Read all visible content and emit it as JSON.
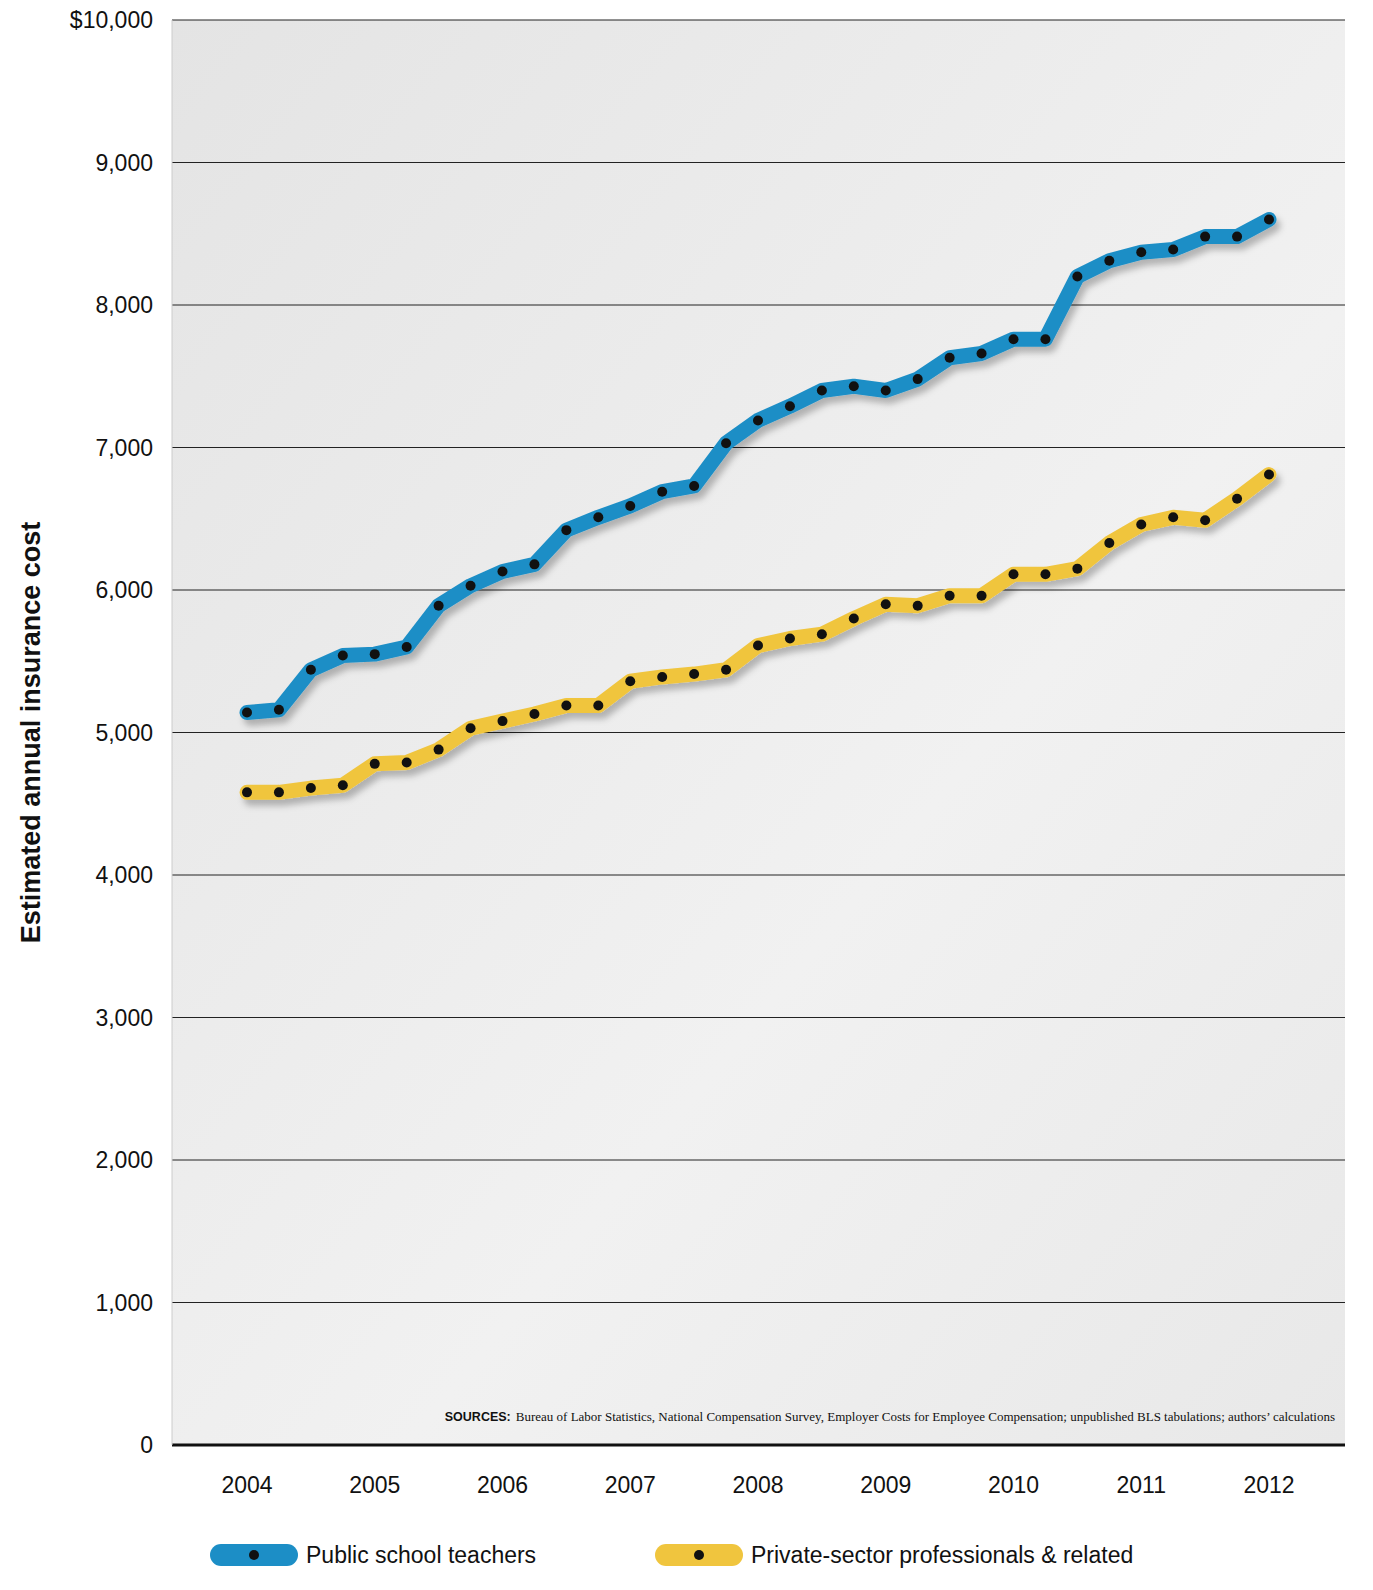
{
  "chart_data": {
    "type": "line",
    "y_label": "Estimated annual insurance cost",
    "annotations": [
      "SOURCES:",
      "Bureau of Labor Statistics, National Compensation Survey, Employer Costs for Employee Compensation; unpublished BLS tabulations; authors’ calculations"
    ],
    "categories": [
      "2004",
      null,
      null,
      null,
      "2005",
      null,
      null,
      null,
      "2006",
      null,
      null,
      null,
      "2007",
      null,
      null,
      null,
      "2008",
      null,
      null,
      null,
      "2009",
      null,
      null,
      null,
      "2010",
      null,
      null,
      null,
      "2011",
      null,
      null,
      null,
      "2012"
    ],
    "series": [
      {
        "name": "Public school teachers",
        "color": "#1c8ec6",
        "marker": "dot",
        "values": [
          5140,
          5160,
          5440,
          5540,
          5550,
          5600,
          5890,
          6030,
          6130,
          6180,
          6420,
          6510,
          6590,
          6690,
          6730,
          7030,
          7190,
          7290,
          7400,
          7430,
          7400,
          7480,
          7630,
          7660,
          7760,
          7760,
          8200,
          8310,
          8370,
          8390,
          8480,
          8480,
          8600
        ]
      },
      {
        "name": "Private-sector professionals & related",
        "color": "#f0c53e",
        "marker": "dot",
        "values": [
          4580,
          4580,
          4610,
          4630,
          4780,
          4790,
          4880,
          5030,
          5080,
          5130,
          5190,
          5190,
          5360,
          5390,
          5410,
          5440,
          5610,
          5660,
          5690,
          5800,
          5900,
          5890,
          5960,
          5960,
          6110,
          6110,
          6150,
          6330,
          6460,
          6510,
          6490,
          6640,
          6810
        ]
      }
    ],
    "ylim": [
      0,
      10000
    ],
    "yticks": [
      0,
      {
        "value": 1000,
        "label": "1,000"
      },
      {
        "value": 2000,
        "label": "2,000"
      },
      {
        "value": 3000,
        "label": "3,000"
      },
      {
        "value": 4000,
        "label": "4,000"
      },
      {
        "value": 5000,
        "label": "5,000"
      },
      {
        "value": 6000,
        "label": "6,000"
      },
      {
        "value": 7000,
        "label": "7,000"
      },
      {
        "value": 8000,
        "label": "8,000"
      },
      {
        "value": 9000,
        "label": "9,000"
      },
      {
        "value": 10000,
        "label": "$10,000"
      }
    ],
    "grid": true,
    "legend": "bottom"
  }
}
